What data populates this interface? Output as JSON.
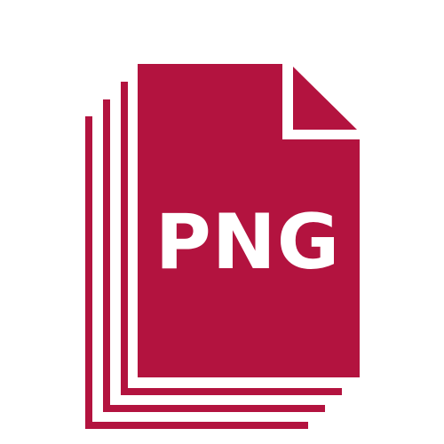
{
  "file_icon": {
    "label": "PNG",
    "icon_name": "stacked-files-icon",
    "color": "#B3133F",
    "text_color": "#FFFFFF",
    "stacked_pages": 4
  }
}
